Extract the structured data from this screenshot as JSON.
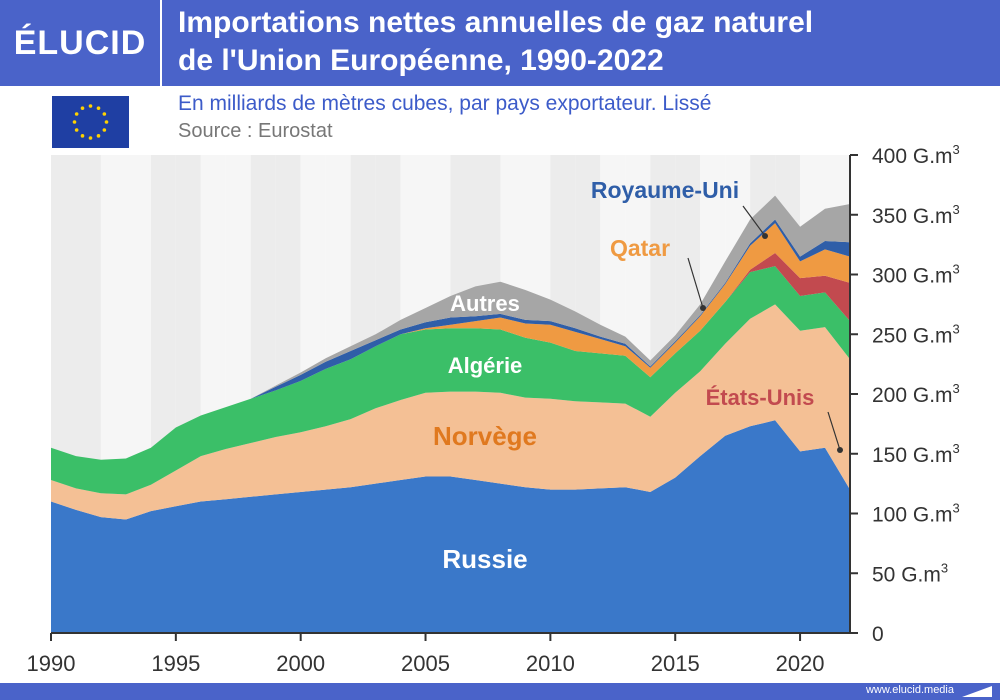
{
  "brand": {
    "logo_text": "ÉLUCID",
    "footer_text": "www.elucid.media"
  },
  "header": {
    "title_line1": "Importations nettes annuelles de gaz naturel",
    "title_line2": "de l'Union Européenne, 1990-2022",
    "subtitle": "En milliards de mètres cubes, par pays exportateur. Lissé",
    "source": "Source : Eurostat"
  },
  "colors": {
    "header_bg": "#4a63c9",
    "russie": "#3a78c9",
    "norvege": "#f4c095",
    "algerie": "#3bbf68",
    "etats_unis": "#c24a4f",
    "qatar": "#ef9a42",
    "royaume_uni": "#2f5ea8",
    "autres": "#a6a6a6"
  },
  "chart_data": {
    "type": "area",
    "stacked": true,
    "title": "Importations nettes annuelles de gaz naturel de l'Union Européenne, 1990-2022",
    "ylabel": "G.m3",
    "unit": "G.m",
    "unit_sup": "3",
    "xlim": [
      1990,
      2022
    ],
    "ylim": [
      0,
      400
    ],
    "x_ticks": [
      1990,
      1995,
      2000,
      2005,
      2010,
      2015,
      2020
    ],
    "y_ticks": [
      0,
      50,
      100,
      150,
      200,
      250,
      300,
      350,
      400
    ],
    "x": [
      1990,
      1991,
      1992,
      1993,
      1994,
      1995,
      1996,
      1997,
      1998,
      1999,
      2000,
      2001,
      2002,
      2003,
      2004,
      2005,
      2006,
      2007,
      2008,
      2009,
      2010,
      2011,
      2012,
      2013,
      2014,
      2015,
      2016,
      2017,
      2018,
      2019,
      2020,
      2021,
      2022
    ],
    "series": [
      {
        "name": "Russie",
        "label": "Russie",
        "values": [
          110,
          103,
          97,
          95,
          102,
          106,
          110,
          112,
          114,
          116,
          118,
          120,
          122,
          125,
          128,
          131,
          131,
          128,
          125,
          122,
          120,
          120,
          121,
          122,
          118,
          130,
          148,
          165,
          173,
          178,
          152,
          155,
          120
        ]
      },
      {
        "name": "Norvège",
        "label": "Norvège",
        "values": [
          18,
          18,
          20,
          21,
          22,
          30,
          38,
          42,
          45,
          48,
          50,
          53,
          57,
          63,
          67,
          70,
          71,
          74,
          76,
          75,
          76,
          74,
          72,
          70,
          63,
          71,
          71,
          77,
          90,
          97,
          101,
          101,
          109
        ]
      },
      {
        "name": "Algérie",
        "label": "Algérie",
        "values": [
          27,
          27,
          28,
          30,
          31,
          36,
          34,
          35,
          37,
          39,
          43,
          48,
          50,
          52,
          55,
          53,
          53,
          53,
          53,
          50,
          47,
          42,
          41,
          40,
          33,
          33,
          34,
          35,
          39,
          32,
          29,
          29,
          32
        ]
      },
      {
        "name": "États-Unis",
        "label": "États-Unis",
        "values": [
          0,
          0,
          0,
          0,
          0,
          0,
          0,
          0,
          0,
          0,
          0,
          0,
          0,
          0,
          0,
          0,
          0,
          0,
          0,
          0,
          0,
          0,
          0,
          0,
          0,
          0,
          0,
          0,
          2,
          11,
          15,
          14,
          32
        ]
      },
      {
        "name": "Qatar",
        "label": "Qatar",
        "values": [
          0,
          0,
          0,
          0,
          0,
          0,
          0,
          0,
          0,
          0,
          0,
          0,
          0,
          0,
          0,
          1,
          3,
          6,
          10,
          12,
          15,
          16,
          12,
          8,
          8,
          9,
          12,
          15,
          20,
          25,
          14,
          22,
          22
        ]
      },
      {
        "name": "Royaume-Uni",
        "label": "Royaume-Uni",
        "values": [
          0,
          0,
          0,
          0,
          0,
          0,
          0,
          0,
          0,
          3,
          5,
          6,
          7,
          5,
          4,
          5,
          6,
          4,
          3,
          3,
          3,
          3,
          2,
          2,
          1,
          1,
          1,
          1,
          2,
          3,
          4,
          7,
          12
        ]
      },
      {
        "name": "Autres",
        "label": "Autres",
        "values": [
          0,
          0,
          0,
          0,
          0,
          0,
          0,
          0,
          0,
          1,
          2,
          3,
          4,
          5,
          8,
          12,
          18,
          25,
          27,
          25,
          18,
          14,
          10,
          6,
          5,
          5,
          9,
          18,
          20,
          20,
          25,
          27,
          32
        ]
      }
    ]
  }
}
